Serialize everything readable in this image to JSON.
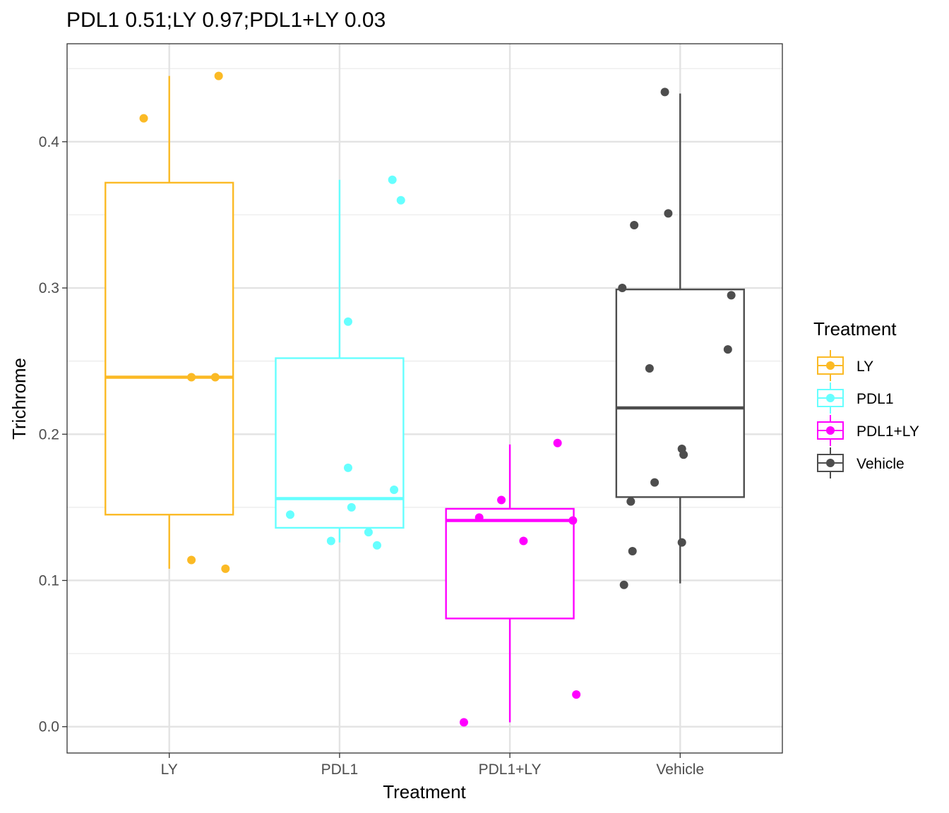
{
  "chart_data": {
    "type": "box",
    "title": "PDL1 0.51;LY 0.97;PDL1+LY 0.03",
    "xlabel": "Treatment",
    "ylabel": "Trichrome",
    "categories": [
      "LY",
      "PDL1",
      "PDL1+LY",
      "Vehicle"
    ],
    "ylim": [
      -0.018,
      0.467
    ],
    "yticks": [
      0.0,
      0.1,
      0.2,
      0.3,
      0.4
    ],
    "ytick_labels": [
      "0.0",
      "0.1",
      "0.2",
      "0.3",
      "0.4"
    ],
    "grid": true,
    "legend": {
      "title": "Treatment",
      "position": "right",
      "entries": [
        "LY",
        "PDL1",
        "PDL1+LY",
        "Vehicle"
      ]
    },
    "series": [
      {
        "name": "LY",
        "color": "#FBBA25",
        "box": {
          "lower_whisker": 0.108,
          "q1": 0.145,
          "median": 0.239,
          "q3": 0.372,
          "upper_whisker": 0.445
        },
        "points": [
          {
            "dx": -0.15,
            "y": 0.416
          },
          {
            "dx": 0.29,
            "y": 0.445
          },
          {
            "dx": 0.13,
            "y": 0.239
          },
          {
            "dx": 0.27,
            "y": 0.239
          },
          {
            "dx": 0.13,
            "y": 0.114
          },
          {
            "dx": 0.33,
            "y": 0.108
          }
        ]
      },
      {
        "name": "PDL1",
        "color": "#66FFFF",
        "box": {
          "lower_whisker": 0.126,
          "q1": 0.136,
          "median": 0.156,
          "q3": 0.252,
          "upper_whisker": 0.374
        },
        "points": [
          {
            "dx": 0.31,
            "y": 0.374
          },
          {
            "dx": 0.36,
            "y": 0.36
          },
          {
            "dx": 0.05,
            "y": 0.277
          },
          {
            "dx": 0.05,
            "y": 0.177
          },
          {
            "dx": 0.32,
            "y": 0.162
          },
          {
            "dx": 0.07,
            "y": 0.15
          },
          {
            "dx": -0.29,
            "y": 0.145
          },
          {
            "dx": 0.17,
            "y": 0.133
          },
          {
            "dx": -0.05,
            "y": 0.127
          },
          {
            "dx": 0.22,
            "y": 0.124
          }
        ]
      },
      {
        "name": "PDL1+LY",
        "color": "#FF00FF",
        "box": {
          "lower_whisker": 0.003,
          "q1": 0.074,
          "median": 0.141,
          "q3": 0.149,
          "upper_whisker": 0.193
        },
        "points": [
          {
            "dx": 0.28,
            "y": 0.194
          },
          {
            "dx": -0.05,
            "y": 0.155
          },
          {
            "dx": -0.18,
            "y": 0.143
          },
          {
            "dx": 0.37,
            "y": 0.141
          },
          {
            "dx": 0.08,
            "y": 0.127
          },
          {
            "dx": 0.39,
            "y": 0.022
          },
          {
            "dx": -0.27,
            "y": 0.003
          }
        ]
      },
      {
        "name": "Vehicle",
        "color": "#4D4D4D",
        "box": {
          "lower_whisker": 0.098,
          "q1": 0.157,
          "median": 0.218,
          "q3": 0.299,
          "upper_whisker": 0.433
        },
        "points": [
          {
            "dx": -0.09,
            "y": 0.434
          },
          {
            "dx": -0.07,
            "y": 0.351
          },
          {
            "dx": -0.27,
            "y": 0.343
          },
          {
            "dx": -0.34,
            "y": 0.3
          },
          {
            "dx": 0.3,
            "y": 0.295
          },
          {
            "dx": 0.28,
            "y": 0.258
          },
          {
            "dx": -0.18,
            "y": 0.245
          },
          {
            "dx": 0.01,
            "y": 0.19
          },
          {
            "dx": 0.02,
            "y": 0.186
          },
          {
            "dx": -0.15,
            "y": 0.167
          },
          {
            "dx": -0.29,
            "y": 0.154
          },
          {
            "dx": 0.01,
            "y": 0.126
          },
          {
            "dx": -0.28,
            "y": 0.12
          },
          {
            "dx": -0.33,
            "y": 0.097
          }
        ]
      }
    ]
  }
}
